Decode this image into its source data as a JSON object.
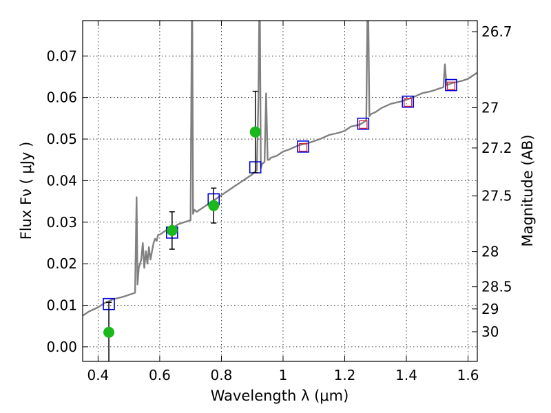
{
  "chart_data": {
    "type": "scatter",
    "xlabel": "Wavelength  λ (μm)",
    "ylabel": "Flux  Fν  ( μJy )",
    "ylabel_right": "Magnitude (AB)",
    "xlim": [
      0.35,
      1.63
    ],
    "ylim": [
      -0.0035,
      0.0785
    ],
    "grid": true,
    "x_ticks": [
      0.4,
      0.6,
      0.8,
      1.0,
      1.2,
      1.4,
      1.6
    ],
    "x_tick_labels": [
      "0.4",
      "0.6",
      "0.8",
      "1",
      "1.2",
      "1.4",
      "1.6"
    ],
    "y_ticks": [
      0.0,
      0.01,
      0.02,
      0.03,
      0.04,
      0.05,
      0.06,
      0.07
    ],
    "y_tick_labels": [
      "0.00",
      "0.01",
      "0.02",
      "0.03",
      "0.04",
      "0.05",
      "0.06",
      "0.07"
    ],
    "right_axis_mag_ticks": [
      "26.7",
      "27",
      "27.2",
      "27.5",
      "28",
      "28.5",
      "29",
      "30"
    ],
    "colors": {
      "model": "#808080",
      "observed": "#1ab81a",
      "model_phot": "#0000dd",
      "model_phot_inner": "#d21f3c",
      "errorbar": "#000000"
    },
    "series": [
      {
        "type": "line",
        "x": [
          0.35,
          0.37,
          0.4,
          0.42,
          0.45,
          0.48,
          0.5,
          0.52,
          0.525,
          0.528,
          0.532,
          0.54,
          0.545,
          0.55,
          0.555,
          0.56,
          0.565,
          0.57,
          0.575,
          0.58,
          0.585,
          0.59,
          0.595,
          0.6,
          0.62,
          0.64,
          0.66,
          0.68,
          0.7,
          0.705,
          0.708,
          0.712,
          0.72,
          0.74,
          0.76,
          0.78,
          0.8,
          0.82,
          0.85,
          0.88,
          0.9,
          0.915,
          0.92,
          0.924,
          0.928,
          0.932,
          0.94,
          0.945,
          0.95,
          0.955,
          0.96,
          0.98,
          1.0,
          1.02,
          1.05,
          1.08,
          1.1,
          1.12,
          1.15,
          1.18,
          1.2,
          1.22,
          1.25,
          1.27,
          1.275,
          1.28,
          1.285,
          1.3,
          1.32,
          1.35,
          1.38,
          1.4,
          1.42,
          1.45,
          1.48,
          1.5,
          1.52,
          1.525,
          1.53,
          1.55,
          1.58,
          1.6,
          1.63
        ],
        "y": [
          0.0075,
          0.0085,
          0.0095,
          0.0105,
          0.0115,
          0.012,
          0.0125,
          0.013,
          0.036,
          0.015,
          0.019,
          0.021,
          0.025,
          0.019,
          0.023,
          0.02,
          0.024,
          0.021,
          0.023,
          0.025,
          0.026,
          0.0255,
          0.027,
          0.027,
          0.028,
          0.0285,
          0.0295,
          0.03,
          0.0305,
          0.09,
          0.032,
          0.033,
          0.0325,
          0.0335,
          0.0345,
          0.0355,
          0.0365,
          0.0375,
          0.039,
          0.0405,
          0.0415,
          0.0425,
          0.06,
          0.09,
          0.043,
          0.044,
          0.0445,
          0.061,
          0.045,
          0.045,
          0.0455,
          0.046,
          0.047,
          0.0475,
          0.0485,
          0.049,
          0.0495,
          0.05,
          0.051,
          0.0515,
          0.052,
          0.053,
          0.0535,
          0.0545,
          0.09,
          0.0555,
          0.056,
          0.0565,
          0.0575,
          0.0585,
          0.059,
          0.0595,
          0.06,
          0.061,
          0.0615,
          0.062,
          0.0625,
          0.068,
          0.063,
          0.0635,
          0.064,
          0.0645,
          0.066
        ]
      },
      {
        "type": "observed",
        "x": [
          0.435,
          0.64,
          0.775,
          0.91
        ],
        "y": [
          0.0035,
          0.028,
          0.034,
          0.0517
        ],
        "yerr": [
          0.0072,
          0.0045,
          0.0042,
          0.0098
        ]
      },
      {
        "type": "model_photometry",
        "x": [
          0.435,
          0.64,
          0.775,
          0.91,
          1.065,
          1.26,
          1.405,
          1.545
        ],
        "y": [
          0.0103,
          0.0275,
          0.0355,
          0.0432,
          0.0482,
          0.0537,
          0.059,
          0.063
        ]
      },
      {
        "type": "model_photometry_inner",
        "x": [
          1.065,
          1.26,
          1.405,
          1.545
        ],
        "y": [
          0.048,
          0.0535,
          0.0588,
          0.0628
        ]
      }
    ]
  }
}
